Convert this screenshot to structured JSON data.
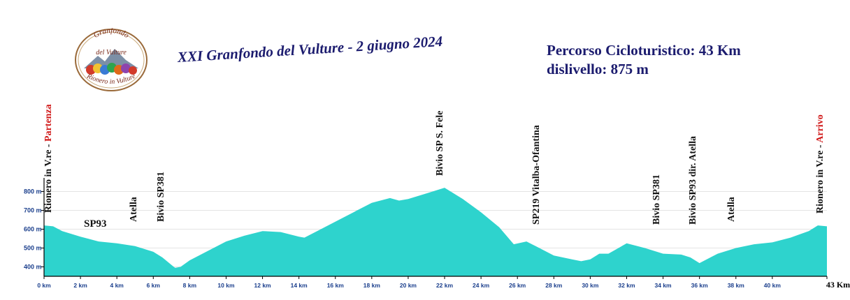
{
  "title": "XXI Granfondo del Vulture - 2 giugno 2024",
  "route_info": {
    "line1": "Percorso Cicloturistico: 43 Km",
    "line2": "dislivello: 875 m"
  },
  "logo": {
    "top_text": "Granfondo",
    "mid_text": "del Vulture",
    "bottom_text": "Rionero in Vulture"
  },
  "road_label": "SP93",
  "waypoints": [
    {
      "name": "Rionero in V.re - ",
      "highlight": "Partenza",
      "km": 0.3
    },
    {
      "name": "Atella",
      "highlight": "",
      "km": 5.0
    },
    {
      "name": "Bivio SP381",
      "highlight": "",
      "km": 6.5
    },
    {
      "name": "Bivio SP S. Fele",
      "highlight": "",
      "km": 21.8
    },
    {
      "name": "SP219 Vitalba-Ofantina",
      "highlight": "",
      "km": 27.1
    },
    {
      "name": "Bivio SP381",
      "highlight": "",
      "km": 33.7
    },
    {
      "name": "Bivio SP93 dir. Atella",
      "highlight": "",
      "km": 35.7
    },
    {
      "name": "Atella",
      "highlight": "",
      "km": 37.8
    },
    {
      "name": "Rionero in V.re - ",
      "highlight": "Arrivo",
      "km": 42.7
    }
  ],
  "chart_data": {
    "type": "area",
    "title": "",
    "xlabel": "",
    "ylabel": "",
    "x_unit": "km",
    "y_unit": "m",
    "xlim": [
      0,
      43
    ],
    "ylim": [
      350,
      850
    ],
    "x_ticks": [
      0,
      2,
      4,
      6,
      8,
      10,
      12,
      14,
      16,
      18,
      20,
      22,
      24,
      26,
      28,
      30,
      32,
      34,
      36,
      38,
      40,
      43
    ],
    "x_tick_labels": [
      "0 km",
      "2 km",
      "4 km",
      "6 km",
      "8 km",
      "10 km",
      "12 km",
      "14 km",
      "16 km",
      "18 km",
      "20 km",
      "22 km",
      "24 km",
      "26 km",
      "28 km",
      "30 km",
      "32 km",
      "34 km",
      "36 km",
      "38 km",
      "40 km",
      "43 Km"
    ],
    "y_ticks": [
      400,
      500,
      600,
      700,
      800
    ],
    "y_tick_labels": [
      "400 m",
      "500 m",
      "600 m",
      "700 m",
      "800 m"
    ],
    "fill_color": "#2ed3cd",
    "series": [
      {
        "x": [
          0,
          0.5,
          1,
          2,
          3,
          4,
          5,
          6,
          6.5,
          7,
          7.2,
          7.5,
          8,
          9,
          10,
          11,
          12,
          13,
          14,
          14.3,
          15,
          16,
          17,
          18,
          19,
          19.5,
          20,
          21,
          22,
          23,
          24,
          25,
          25.8,
          26.5,
          27,
          28,
          29,
          29.5,
          30,
          30.5,
          31,
          32,
          33,
          34,
          35,
          35.5,
          36,
          37,
          38,
          39,
          40,
          41,
          42,
          42.5,
          43
        ],
        "y": [
          620,
          615,
          590,
          560,
          535,
          525,
          510,
          480,
          450,
          410,
          395,
          400,
          435,
          485,
          535,
          565,
          590,
          585,
          560,
          555,
          590,
          640,
          690,
          740,
          765,
          752,
          760,
          790,
          820,
          760,
          690,
          610,
          520,
          535,
          510,
          460,
          440,
          430,
          440,
          470,
          470,
          525,
          500,
          470,
          465,
          450,
          420,
          470,
          500,
          520,
          530,
          555,
          590,
          620,
          615
        ]
      }
    ]
  }
}
